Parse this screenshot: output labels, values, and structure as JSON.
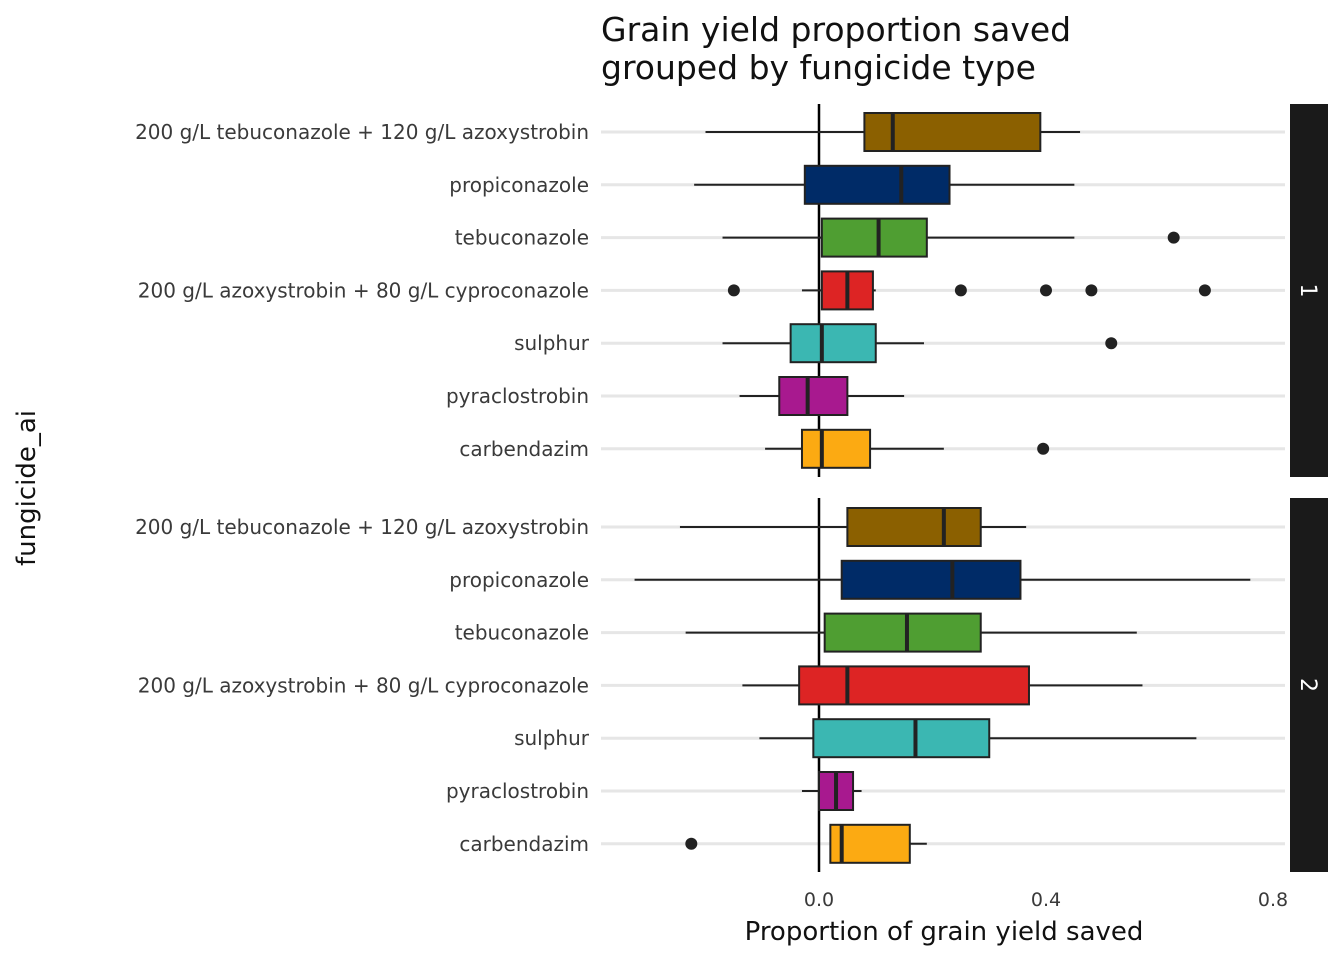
{
  "chart_data": {
    "type": "boxplot",
    "title_lines": [
      "Grain yield proportion saved",
      "grouped by fungicide type"
    ],
    "xlabel": "Proportion of grain yield saved",
    "ylabel": "fungicide_ai",
    "xlim": [
      -0.38,
      0.8
    ],
    "x_ticks": [
      {
        "value": 0.0,
        "label": "0.0"
      },
      {
        "value": 0.4,
        "label": "0.4"
      },
      {
        "value": 0.8,
        "label": "0.8"
      }
    ],
    "reference_line": 0,
    "grid": true,
    "categories": [
      "200 g/L tebuconazole + 120 g/L azoxystrobin",
      "propiconazole",
      "tebuconazole",
      "200 g/L azoxystrobin + 80 g/L cyproconazole",
      "sulphur",
      "pyraclostrobin",
      "carbendazim"
    ],
    "colors": [
      "#8B6000",
      "#002B67",
      "#4F9E32",
      "#DD2424",
      "#3BB7B2",
      "#A8198F",
      "#FCAA12"
    ],
    "panels": [
      {
        "strip": "1",
        "boxes": [
          {
            "category": "200 g/L tebuconazole + 120 g/L azoxystrobin",
            "whisker_low": -0.2,
            "q1": 0.08,
            "median": 0.13,
            "q3": 0.39,
            "whisker_high": 0.46,
            "outliers": []
          },
          {
            "category": "propiconazole",
            "whisker_low": -0.22,
            "q1": -0.025,
            "median": 0.145,
            "q3": 0.23,
            "whisker_high": 0.45,
            "outliers": []
          },
          {
            "category": "tebuconazole",
            "whisker_low": -0.17,
            "q1": 0.005,
            "median": 0.105,
            "q3": 0.19,
            "whisker_high": 0.45,
            "outliers": [
              0.625
            ]
          },
          {
            "category": "200 g/L azoxystrobin + 80 g/L cyproconazole",
            "whisker_low": -0.03,
            "q1": 0.005,
            "median": 0.05,
            "q3": 0.095,
            "whisker_high": 0.1,
            "outliers": [
              -0.15,
              0.25,
              0.4,
              0.48,
              0.68
            ]
          },
          {
            "category": "sulphur",
            "whisker_low": -0.17,
            "q1": -0.05,
            "median": 0.005,
            "q3": 0.1,
            "whisker_high": 0.185,
            "outliers": [
              0.515
            ]
          },
          {
            "category": "pyraclostrobin",
            "whisker_low": -0.14,
            "q1": -0.07,
            "median": -0.02,
            "q3": 0.05,
            "whisker_high": 0.15,
            "outliers": []
          },
          {
            "category": "carbendazim",
            "whisker_low": -0.095,
            "q1": -0.03,
            "median": 0.005,
            "q3": 0.09,
            "whisker_high": 0.22,
            "outliers": [
              0.395
            ]
          }
        ]
      },
      {
        "strip": "2",
        "boxes": [
          {
            "category": "200 g/L tebuconazole + 120 g/L azoxystrobin",
            "whisker_low": -0.245,
            "q1": 0.05,
            "median": 0.22,
            "q3": 0.285,
            "whisker_high": 0.365,
            "outliers": []
          },
          {
            "category": "propiconazole",
            "whisker_low": -0.325,
            "q1": 0.04,
            "median": 0.235,
            "q3": 0.355,
            "whisker_high": 0.76,
            "outliers": []
          },
          {
            "category": "tebuconazole",
            "whisker_low": -0.235,
            "q1": 0.01,
            "median": 0.155,
            "q3": 0.285,
            "whisker_high": 0.56,
            "outliers": []
          },
          {
            "category": "200 g/L azoxystrobin + 80 g/L cyproconazole",
            "whisker_low": -0.135,
            "q1": -0.035,
            "median": 0.05,
            "q3": 0.37,
            "whisker_high": 0.57,
            "outliers": []
          },
          {
            "category": "sulphur",
            "whisker_low": -0.105,
            "q1": -0.01,
            "median": 0.17,
            "q3": 0.3,
            "whisker_high": 0.665,
            "outliers": []
          },
          {
            "category": "pyraclostrobin",
            "whisker_low": -0.03,
            "q1": 0.0,
            "median": 0.03,
            "q3": 0.06,
            "whisker_high": 0.075,
            "outliers": []
          },
          {
            "category": "carbendazim",
            "whisker_low": 0.02,
            "q1": 0.02,
            "median": 0.04,
            "q3": 0.16,
            "whisker_high": 0.19,
            "outliers": [
              -0.225
            ]
          }
        ]
      }
    ]
  }
}
